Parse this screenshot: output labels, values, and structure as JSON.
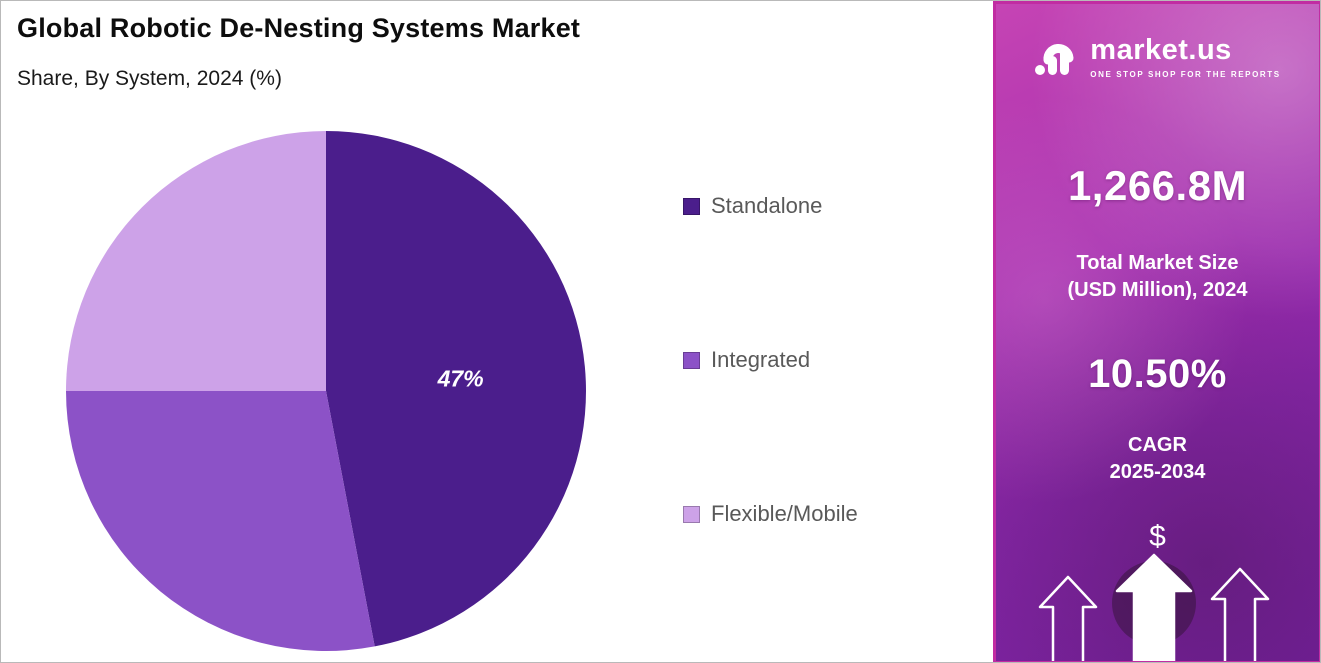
{
  "header": {
    "title": "Global Robotic De-Nesting Systems Market",
    "subtitle": "Share, By System, 2024 (%)"
  },
  "chart_data": {
    "type": "pie",
    "title": "Global Robotic De-Nesting Systems Market — Share, By System, 2024 (%)",
    "legend_position": "right",
    "start_angle_deg": -90,
    "direction": "clockwise",
    "slices": [
      {
        "label": "Standalone",
        "value": 47,
        "display": "47%",
        "color": "#4b1e8c"
      },
      {
        "label": "Integrated",
        "value": 28,
        "display": "",
        "color": "#8c52c7"
      },
      {
        "label": "Flexible/Mobile",
        "value": 25,
        "display": "",
        "color": "#cda2e8"
      }
    ]
  },
  "sidebar": {
    "brand": {
      "name": "market.us",
      "tagline": "ONE STOP SHOP FOR THE REPORTS"
    },
    "market_size_value": "1,266.8M",
    "market_size_label_line1": "Total Market Size",
    "market_size_label_line2": "(USD Million), 2024",
    "cagr_value": "10.50%",
    "cagr_label": "CAGR",
    "cagr_period": "2025-2034",
    "dollar_symbol": "$",
    "accent_border_color": "#c12ca2"
  }
}
